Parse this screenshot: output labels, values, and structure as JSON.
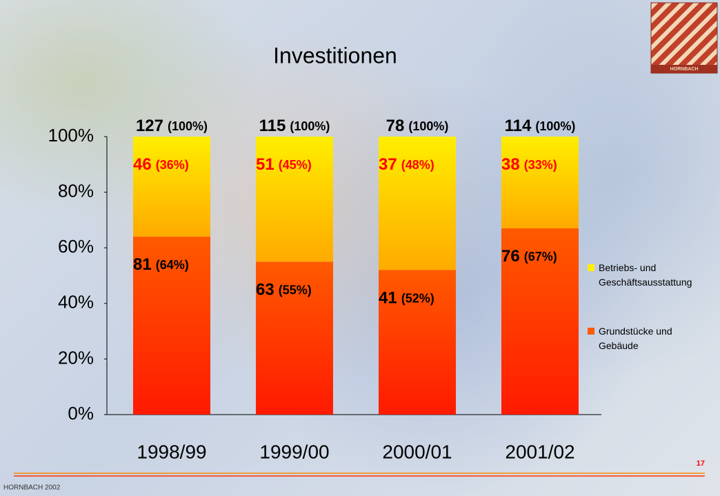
{
  "chart_data": {
    "type": "stacked_bar_percent",
    "title": "Investitionen",
    "categories": [
      "1998/99",
      "1999/00",
      "2000/01",
      "2001/02"
    ],
    "series": [
      {
        "name": "Grundstücke und Gebäude",
        "color": "#ff5a00",
        "label_color": "#000000",
        "amounts": [
          81,
          63,
          41,
          76
        ],
        "values": [
          64,
          55,
          52,
          67
        ],
        "value_labels": [
          "(64%)",
          "(55%)",
          "(52%)",
          "(67%)"
        ]
      },
      {
        "name": "Betriebs- und Geschäftsausstattung",
        "color": "#ffee00",
        "label_color": "#ff0000",
        "amounts": [
          46,
          51,
          37,
          38
        ],
        "values": [
          36,
          45,
          48,
          33
        ],
        "value_labels": [
          "(36%)",
          "(45%)",
          "(48%)",
          "(33%)"
        ]
      }
    ],
    "totals": [
      127,
      115,
      78,
      114
    ],
    "total_labels": [
      "(100%)",
      "(100%)",
      "(100%)",
      "(100%)"
    ],
    "ylim": [
      0,
      100
    ],
    "yticks": [
      {
        "value": 0,
        "label": "0%"
      },
      {
        "value": 20,
        "label": "20%"
      },
      {
        "value": 40,
        "label": "40%"
      },
      {
        "value": 60,
        "label": "60%"
      },
      {
        "value": 80,
        "label": "80%"
      },
      {
        "value": 100,
        "label": "100%"
      }
    ],
    "legend": "right"
  },
  "footer": {
    "left": "HORNBACH 2002",
    "page": "17",
    "logo_text": "HORNBACH"
  }
}
